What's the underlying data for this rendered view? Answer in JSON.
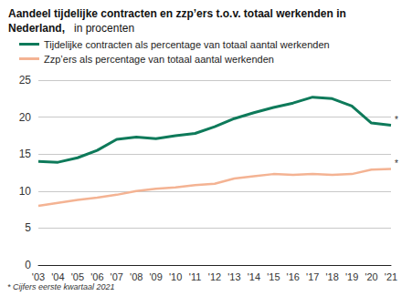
{
  "chart_data": {
    "type": "line",
    "title": "Aandeel tijdelijke contracten en zzp’ers t.o.v. totaal werkenden in Nederland,",
    "subtitle": "in procenten",
    "categories": [
      "'03",
      "'04",
      "'05",
      "'06",
      "'07",
      "'08",
      "'09",
      "'10",
      "'11",
      "'12",
      "'13",
      "'14",
      "'15",
      "'16",
      "'17",
      "'18",
      "'19",
      "'20",
      "'21"
    ],
    "series": [
      {
        "name": "Tijdelijke contracten als percentage van totaal aantal werkenden",
        "color": "#0e7a5a",
        "values": [
          14.0,
          13.9,
          14.5,
          15.5,
          17.0,
          17.3,
          17.1,
          17.5,
          17.8,
          18.7,
          19.8,
          20.6,
          21.3,
          21.9,
          22.7,
          22.5,
          21.5,
          19.2,
          18.9
        ]
      },
      {
        "name": "Zzp’ers als percentage van totaal aantal werkenden",
        "color": "#f4b393",
        "values": [
          8.0,
          8.4,
          8.8,
          9.1,
          9.5,
          10.0,
          10.3,
          10.5,
          10.8,
          11.0,
          11.7,
          12.0,
          12.3,
          12.2,
          12.3,
          12.2,
          12.3,
          12.9,
          13.0
        ]
      }
    ],
    "ylim": [
      0,
      25
    ],
    "yticks": [
      0,
      5,
      10,
      15,
      20,
      25
    ],
    "grid": true,
    "legend": "top-left",
    "last_point_mark": "*",
    "note": "* Cijfers eerste kwartaal 2021"
  }
}
